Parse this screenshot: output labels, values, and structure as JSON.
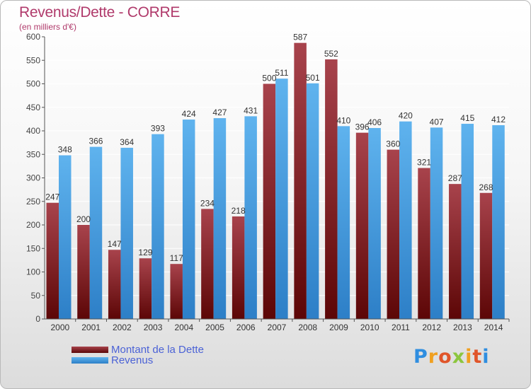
{
  "header": {
    "title": "Revenus/Dette - CORRE",
    "subtitle": "(en milliers d'€)"
  },
  "legend": {
    "items": [
      {
        "label": "Montant de la Dette",
        "color": "#7a1a22"
      },
      {
        "label": "Revenus",
        "color": "#4aa3e6"
      }
    ]
  },
  "logo": {
    "text": "Proxiti"
  },
  "colors": {
    "title": "#b03a6b",
    "debt_top": "#a8434c",
    "debt_bottom": "#5c0606",
    "revenue_top": "#5fb3ee",
    "revenue_bottom": "#2d7fc7",
    "legend_text": "#4b62d6",
    "grid": "#ffffff"
  },
  "chart_data": {
    "type": "bar",
    "categories": [
      "2000",
      "2001",
      "2002",
      "2003",
      "2004",
      "2005",
      "2006",
      "2007",
      "2008",
      "2009",
      "2010",
      "2011",
      "2012",
      "2013",
      "2014"
    ],
    "series": [
      {
        "name": "Montant de la Dette",
        "values": [
          247,
          200,
          147,
          129,
          117,
          234,
          218,
          500,
          587,
          552,
          396,
          360,
          321,
          287,
          268
        ]
      },
      {
        "name": "Revenus",
        "values": [
          348,
          366,
          364,
          393,
          424,
          427,
          431,
          511,
          501,
          410,
          406,
          420,
          407,
          415,
          412
        ]
      }
    ],
    "ylim": [
      0,
      600
    ],
    "yticks": [
      0,
      50,
      100,
      150,
      200,
      250,
      300,
      350,
      400,
      450,
      500,
      550,
      600
    ],
    "grid": true,
    "legend_position": "bottom-left"
  }
}
